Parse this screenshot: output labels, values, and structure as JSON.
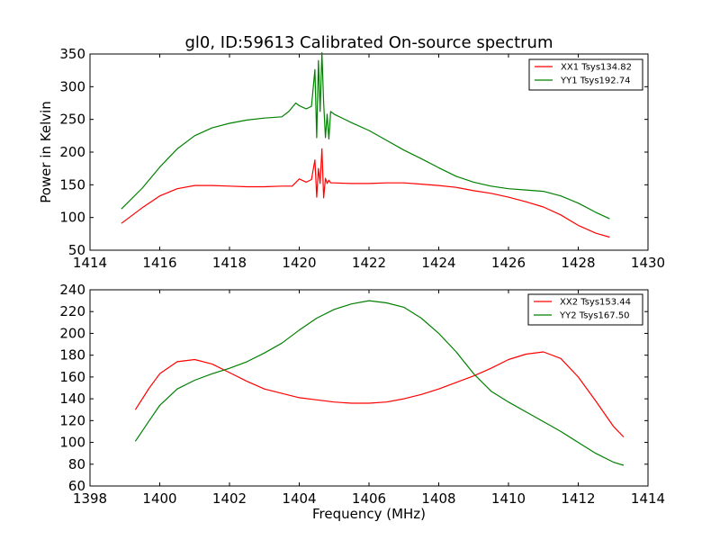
{
  "title": "gl0, ID:59613 Calibrated On-source spectrum",
  "chart_data": [
    {
      "type": "line",
      "title": "gl0, ID:59613 Calibrated On-source spectrum",
      "xlabel": "",
      "ylabel": "Power in Kelvin",
      "xlim": [
        1414,
        1430
      ],
      "ylim": [
        50,
        350
      ],
      "xticks": [
        1414,
        1416,
        1418,
        1420,
        1422,
        1424,
        1426,
        1428,
        1430
      ],
      "yticks": [
        50,
        100,
        150,
        200,
        250,
        300,
        350
      ],
      "grid": false,
      "legend": "top-right",
      "series": [
        {
          "name": "XX1 Tsys134.82",
          "color": "#ff0000",
          "x": [
            1414.9,
            1415.5,
            1416.0,
            1416.5,
            1417.0,
            1417.5,
            1418.0,
            1418.5,
            1419.0,
            1419.5,
            1419.8,
            1420.0,
            1420.2,
            1420.35,
            1420.45,
            1420.5,
            1420.55,
            1420.6,
            1420.65,
            1420.7,
            1420.75,
            1420.8,
            1420.85,
            1420.9,
            1421.0,
            1421.5,
            1422.0,
            1422.5,
            1423.0,
            1423.5,
            1424.0,
            1424.5,
            1425.0,
            1425.5,
            1426.0,
            1426.5,
            1427.0,
            1427.5,
            1428.0,
            1428.5,
            1428.9
          ],
          "y": [
            91,
            115,
            133,
            144,
            149,
            149,
            148,
            147,
            147,
            148,
            148,
            159,
            154,
            158,
            188,
            131,
            175,
            152,
            205,
            130,
            160,
            152,
            157,
            153,
            153,
            152,
            152,
            153,
            153,
            151,
            149,
            146,
            141,
            137,
            131,
            124,
            116,
            104,
            88,
            76,
            70
          ]
        },
        {
          "name": "YY1 Tsys192.74",
          "color": "#008000",
          "x": [
            1414.9,
            1415.5,
            1416.0,
            1416.5,
            1417.0,
            1417.5,
            1418.0,
            1418.5,
            1419.0,
            1419.5,
            1419.7,
            1419.9,
            1420.0,
            1420.2,
            1420.35,
            1420.45,
            1420.5,
            1420.55,
            1420.6,
            1420.65,
            1420.7,
            1420.75,
            1420.8,
            1420.85,
            1420.9,
            1421.0,
            1421.5,
            1422.0,
            1422.5,
            1423.0,
            1423.5,
            1424.0,
            1424.5,
            1425.0,
            1425.5,
            1426.0,
            1426.5,
            1427.0,
            1427.5,
            1428.0,
            1428.5,
            1428.9
          ],
          "y": [
            113,
            145,
            177,
            205,
            225,
            237,
            244,
            249,
            252,
            254,
            262,
            275,
            271,
            266,
            270,
            326,
            222,
            340,
            262,
            352,
            276,
            222,
            258,
            220,
            262,
            258,
            245,
            233,
            218,
            203,
            190,
            176,
            163,
            154,
            148,
            144,
            142,
            140,
            133,
            122,
            108,
            98
          ]
        }
      ]
    },
    {
      "type": "line",
      "title": "",
      "xlabel": "Frequency (MHz)",
      "ylabel": "",
      "xlim": [
        1398,
        1414
      ],
      "ylim": [
        60,
        240
      ],
      "xticks": [
        1398,
        1400,
        1402,
        1404,
        1406,
        1408,
        1410,
        1412,
        1414
      ],
      "yticks": [
        60,
        80,
        100,
        120,
        140,
        160,
        180,
        200,
        220,
        240
      ],
      "grid": false,
      "legend": "top-right",
      "series": [
        {
          "name": "XX2 Tsys153.44",
          "color": "#ff0000",
          "x": [
            1399.3,
            1399.7,
            1400.0,
            1400.5,
            1401.0,
            1401.5,
            1402.0,
            1402.5,
            1403.0,
            1403.5,
            1404.0,
            1404.5,
            1405.0,
            1405.5,
            1406.0,
            1406.5,
            1407.0,
            1407.5,
            1408.0,
            1408.5,
            1409.0,
            1409.5,
            1410.0,
            1410.5,
            1411.0,
            1411.5,
            1412.0,
            1412.5,
            1413.0,
            1413.3
          ],
          "y": [
            130,
            150,
            163,
            174,
            176,
            172,
            164,
            156,
            149,
            145,
            141,
            139,
            137,
            136,
            136,
            137,
            140,
            144,
            149,
            155,
            161,
            168,
            176,
            181,
            183,
            177,
            160,
            138,
            115,
            105
          ]
        },
        {
          "name": "YY2 Tsys167.50",
          "color": "#008000",
          "x": [
            1399.3,
            1399.7,
            1400.0,
            1400.5,
            1401.0,
            1401.5,
            1402.0,
            1402.5,
            1403.0,
            1403.5,
            1404.0,
            1404.5,
            1405.0,
            1405.5,
            1406.0,
            1406.5,
            1407.0,
            1407.5,
            1408.0,
            1408.5,
            1409.0,
            1409.5,
            1410.0,
            1410.5,
            1411.0,
            1411.5,
            1412.0,
            1412.5,
            1413.0,
            1413.3
          ],
          "y": [
            101,
            120,
            134,
            149,
            157,
            163,
            168,
            174,
            182,
            191,
            203,
            214,
            222,
            227,
            230,
            228,
            224,
            214,
            200,
            183,
            163,
            147,
            137,
            128,
            119,
            110,
            100,
            90,
            82,
            79
          ]
        }
      ]
    }
  ]
}
